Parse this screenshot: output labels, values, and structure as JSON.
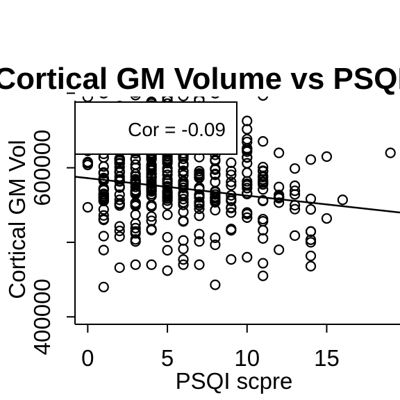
{
  "chart_data": {
    "type": "scatter",
    "title": "Cortical GM Volume vs PSQI",
    "xlabel": "PSQI scpre",
    "ylabel": "Cortical GM Vol",
    "xlim": [
      -0.8,
      19.6
    ],
    "ylim": [
      390000,
      690000
    ],
    "x_ticks": [
      0,
      5,
      10,
      15
    ],
    "x_tick_labels": [
      "0",
      "5",
      "10",
      "15"
    ],
    "y_ticks": [
      400000,
      600000
    ],
    "y_tick_labels": [
      "400000",
      "600000"
    ],
    "y_minor_ticks": [
      400000,
      500000,
      600000,
      700000
    ],
    "annotation": "Cor = -0.09",
    "legend_position": "top-left",
    "regression_line": {
      "x": [
        -0.8,
        19.6
      ],
      "y": [
        588000,
        540000
      ]
    },
    "columns": [
      {
        "x": 0,
        "y_min": 547000,
        "y_max": 695000,
        "n": 16
      },
      {
        "x": 1,
        "y_min": 440000,
        "y_max": 700000,
        "n": 34
      },
      {
        "x": 2,
        "y_min": 466000,
        "y_max": 735000,
        "n": 44
      },
      {
        "x": 3,
        "y_min": 470000,
        "y_max": 738000,
        "n": 52
      },
      {
        "x": 4,
        "y_min": 470000,
        "y_max": 738000,
        "n": 56
      },
      {
        "x": 5,
        "y_min": 462000,
        "y_max": 738000,
        "n": 54
      },
      {
        "x": 6,
        "y_min": 470000,
        "y_max": 734000,
        "n": 44
      },
      {
        "x": 7,
        "y_min": 470000,
        "y_max": 732000,
        "n": 38
      },
      {
        "x": 8,
        "y_min": 443000,
        "y_max": 700000,
        "n": 26
      },
      {
        "x": 9,
        "y_min": 477000,
        "y_max": 679000,
        "n": 18
      },
      {
        "x": 10,
        "y_min": 480000,
        "y_max": 711000,
        "n": 22
      },
      {
        "x": 11,
        "y_min": 455000,
        "y_max": 697000,
        "n": 20
      },
      {
        "x": 12,
        "y_min": 490000,
        "y_max": 620000,
        "n": 8
      },
      {
        "x": 13,
        "y_min": 509000,
        "y_max": 599000,
        "n": 7
      },
      {
        "x": 14,
        "y_min": 468000,
        "y_max": 611000,
        "n": 9
      }
    ],
    "points": [
      {
        "x": 15,
        "y": 615000
      },
      {
        "x": 15,
        "y": 532000
      },
      {
        "x": 16,
        "y": 557000
      },
      {
        "x": 19,
        "y": 620000
      }
    ]
  }
}
